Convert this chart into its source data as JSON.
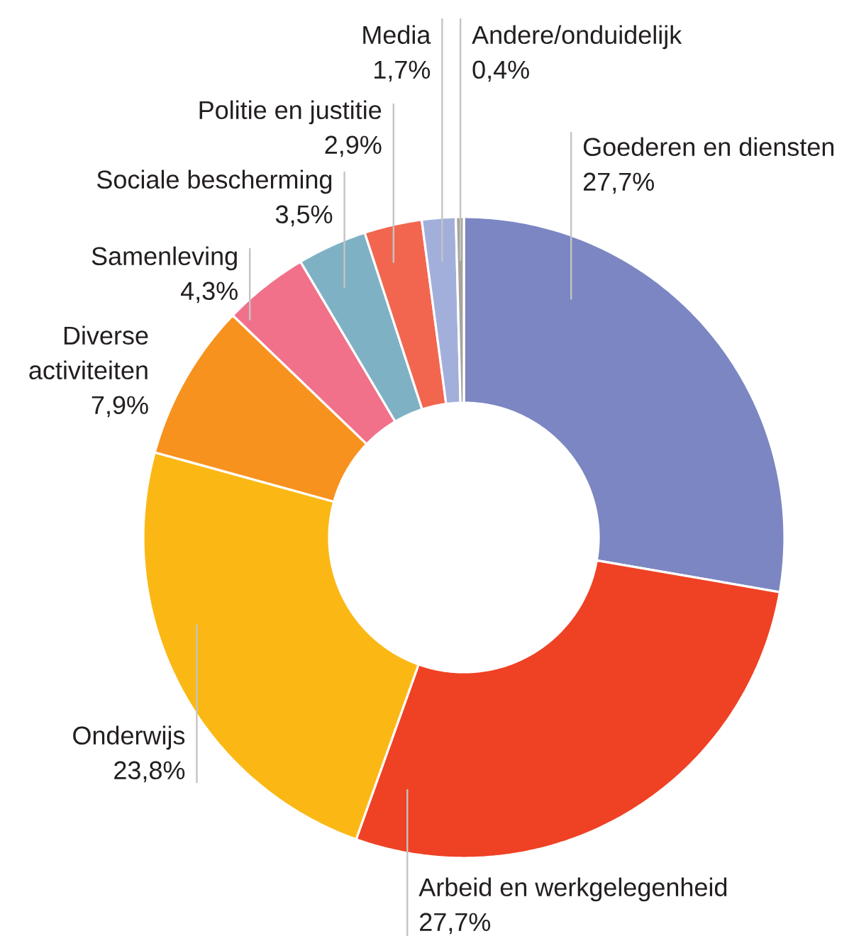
{
  "chart_data": {
    "type": "donut",
    "categories": [
      "Goederen en diensten",
      "Arbeid en werkgelegenheid",
      "Onderwijs",
      "Diverse activiteiten",
      "Samenleving",
      "Sociale bescherming",
      "Politie en justitie",
      "Media",
      "Andere/onduidelijk"
    ],
    "values": [
      27.7,
      27.7,
      23.8,
      7.9,
      4.3,
      3.5,
      2.9,
      1.7,
      0.4
    ],
    "colors": [
      "#7b86c2",
      "#ef4124",
      "#fbb815",
      "#f7921e",
      "#f1718a",
      "#7fb1c4",
      "#f26650",
      "#a3afdb",
      "#a7a49c"
    ],
    "value_labels": [
      "27,7%",
      "27,7%",
      "23,8%",
      "7,9%",
      "4,3%",
      "3,5%",
      "2,9%",
      "1,7%",
      "0,4%"
    ]
  }
}
